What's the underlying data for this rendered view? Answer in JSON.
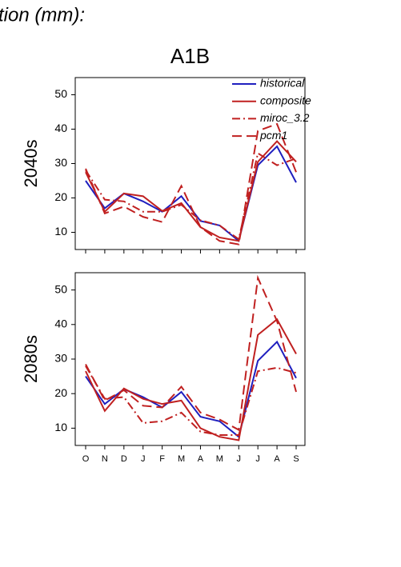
{
  "header": {
    "title": "tion (mm):"
  },
  "chart_data": [
    {
      "type": "line",
      "title": "A1B",
      "ylabel": "2040s",
      "ylim": [
        5,
        55
      ],
      "yticks": [
        10,
        20,
        30,
        40,
        50
      ],
      "series": [
        {
          "name": "historical",
          "color": "#1f1fbf",
          "dash": "solid",
          "values": [
            25,
            17,
            21.3,
            19,
            16,
            20.5,
            13.3,
            12,
            7.5,
            29.5,
            35,
            24.5
          ]
        },
        {
          "name": "composite",
          "color": "#c02020",
          "dash": "solid",
          "values": [
            27.5,
            16,
            21.3,
            20.5,
            16.2,
            18.5,
            11.5,
            8.5,
            7.5,
            30.5,
            36.5,
            30.5
          ]
        },
        {
          "name": "miroc_3.2",
          "color": "#c02020",
          "dash": "dashdot",
          "values": [
            28,
            19.5,
            19,
            16,
            16,
            18,
            13.5,
            12,
            8,
            33,
            29.5,
            31.5
          ]
        },
        {
          "name": "pcm1",
          "color": "#c02020",
          "dash": "dashed",
          "values": [
            28.5,
            15.5,
            17.5,
            14.5,
            13,
            23.5,
            11.5,
            7.5,
            6.5,
            39.5,
            41.5,
            27.5
          ]
        }
      ]
    },
    {
      "type": "line",
      "ylabel": "2080s",
      "categories": [
        "O",
        "N",
        "D",
        "J",
        "F",
        "M",
        "A",
        "M",
        "J",
        "J",
        "A",
        "S"
      ],
      "ylim": [
        5,
        55
      ],
      "yticks": [
        10,
        20,
        30,
        40,
        50
      ],
      "series": [
        {
          "color": "#1f1fbf",
          "dash": "solid",
          "values": [
            25,
            17,
            21.3,
            19,
            16,
            20.5,
            13.3,
            12,
            7.5,
            29.5,
            35,
            24.5
          ]
        },
        {
          "color": "#c02020",
          "dash": "solid",
          "values": [
            26.5,
            15,
            21.5,
            18.5,
            17,
            18,
            10,
            7.5,
            6.5,
            37,
            41.5,
            31.5
          ]
        },
        {
          "color": "#c02020",
          "dash": "dashdot",
          "values": [
            28,
            18.5,
            19,
            11.5,
            12,
            14.5,
            9,
            8,
            8,
            26.5,
            27.5,
            26
          ]
        },
        {
          "color": "#c02020",
          "dash": "dashed",
          "values": [
            28.5,
            18,
            21,
            16.5,
            16,
            22,
            14.5,
            12.5,
            9.5,
            53.5,
            41,
            20.5
          ]
        }
      ]
    }
  ]
}
